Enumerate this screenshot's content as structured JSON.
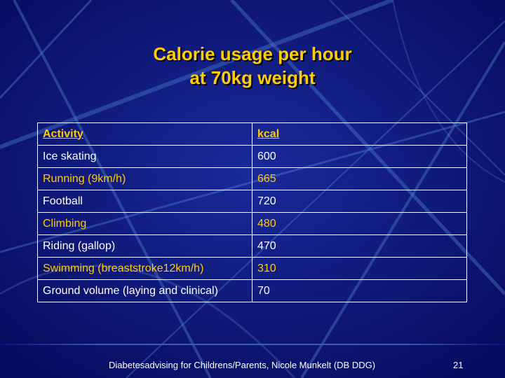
{
  "slide": {
    "title_line1": "Calorie usage per hour",
    "title_line2": "at 70kg weight"
  },
  "table": {
    "headers": [
      "Activity",
      "kcal"
    ],
    "rows": [
      [
        "Ice skating",
        "600"
      ],
      [
        "Running (9km/h)",
        "665"
      ],
      [
        "Football",
        "720"
      ],
      [
        "Climbing",
        "480"
      ],
      [
        "Riding (gallop)",
        "470"
      ],
      [
        "Swimming (breaststroke12km/h)",
        "310"
      ],
      [
        "Ground volume (laying and clinical)",
        "70"
      ]
    ]
  },
  "footer": {
    "credit": "Diabetesadvising for Childrens/Parents, Nicole Munkelt (DB DDG)",
    "page_number": "21"
  },
  "colors": {
    "background": "#0a0f78",
    "accent": "#ffcc00",
    "text": "#ffffff"
  }
}
